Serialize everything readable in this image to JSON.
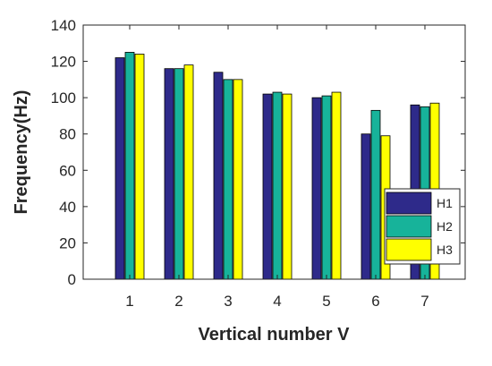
{
  "chart_data": {
    "type": "bar",
    "categories": [
      "1",
      "2",
      "3",
      "4",
      "5",
      "6",
      "7"
    ],
    "series": [
      {
        "name": "H1",
        "values": [
          122,
          116,
          114,
          102,
          100,
          80,
          96
        ],
        "color": "#2e2a8a"
      },
      {
        "name": "H2",
        "values": [
          125,
          116,
          110,
          103,
          101,
          93,
          95
        ],
        "color": "#17b39a"
      },
      {
        "name": "H3",
        "values": [
          124,
          118,
          110,
          102,
          103,
          79,
          97
        ],
        "color": "#ffff00"
      }
    ],
    "title": "",
    "xlabel": "Vertical number V",
    "ylabel": "Frequency(Hz)",
    "ylim": [
      0,
      140
    ],
    "yticks": [
      "0",
      "20",
      "40",
      "60",
      "80",
      "100",
      "120",
      "140"
    ],
    "grid": false,
    "legend_position": "bottom-right"
  }
}
